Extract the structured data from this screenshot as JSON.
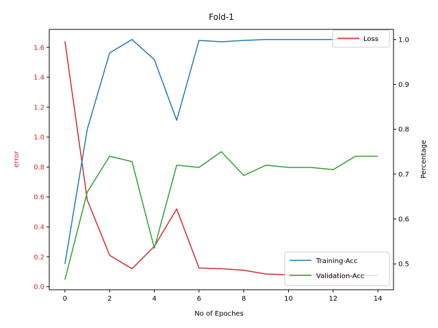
{
  "chart_data": {
    "type": "line",
    "title": "Fold-1",
    "xlabel": "No of Epoches",
    "ylabel_left": "error",
    "ylabel_right": "Percentage",
    "x": [
      0,
      1,
      2,
      3,
      4,
      5,
      6,
      7,
      8,
      9,
      10,
      11,
      12,
      13,
      14
    ],
    "xlim": [
      -0.7,
      14.7
    ],
    "xticks": [
      0,
      2,
      4,
      6,
      8,
      10,
      12,
      14
    ],
    "left_axis": {
      "ylim": [
        -0.02,
        1.72
      ],
      "ticks": [
        "0.0",
        "0.2",
        "0.4",
        "0.6",
        "0.8",
        "1.0",
        "1.2",
        "1.4",
        "1.6"
      ],
      "tick_values": [
        0,
        0.2,
        0.4,
        0.6,
        0.8,
        1.0,
        1.2,
        1.4,
        1.6
      ],
      "color": "#d62728"
    },
    "right_axis": {
      "ylim": [
        0.4425,
        1.0225
      ],
      "ticks": [
        "0.5",
        "0.6",
        "0.7",
        "0.8",
        "0.9",
        "1.0"
      ],
      "tick_values": [
        0.5,
        0.6,
        0.7,
        0.8,
        0.9,
        1.0
      ],
      "color": "#000000"
    },
    "series": [
      {
        "name": "Loss",
        "axis": "left",
        "color": "#d62728",
        "values": [
          1.64,
          0.58,
          0.21,
          0.12,
          0.27,
          0.52,
          0.125,
          0.12,
          0.11,
          0.085,
          0.08,
          0.08,
          0.075,
          0.075,
          0.075
        ]
      },
      {
        "name": "Training-Acc",
        "axis": "right",
        "color": "#1f77b4",
        "values": [
          0.5,
          0.8,
          0.97,
          1.0,
          0.955,
          0.82,
          0.998,
          0.995,
          0.998,
          1.0,
          1.0,
          1.0,
          1.0,
          1.0,
          1.0
        ]
      },
      {
        "name": "Validation-Acc",
        "axis": "right",
        "color": "#2ca02c",
        "values": [
          0.465,
          0.66,
          0.74,
          0.728,
          0.535,
          0.72,
          0.715,
          0.75,
          0.697,
          0.72,
          0.715,
          0.715,
          0.71,
          0.74,
          0.74
        ]
      }
    ],
    "legends": [
      {
        "placement": "top-right",
        "entries": [
          "Loss"
        ]
      },
      {
        "placement": "bottom-right",
        "entries": [
          "Training-Acc",
          "Validation-Acc"
        ]
      }
    ],
    "grid": false
  }
}
